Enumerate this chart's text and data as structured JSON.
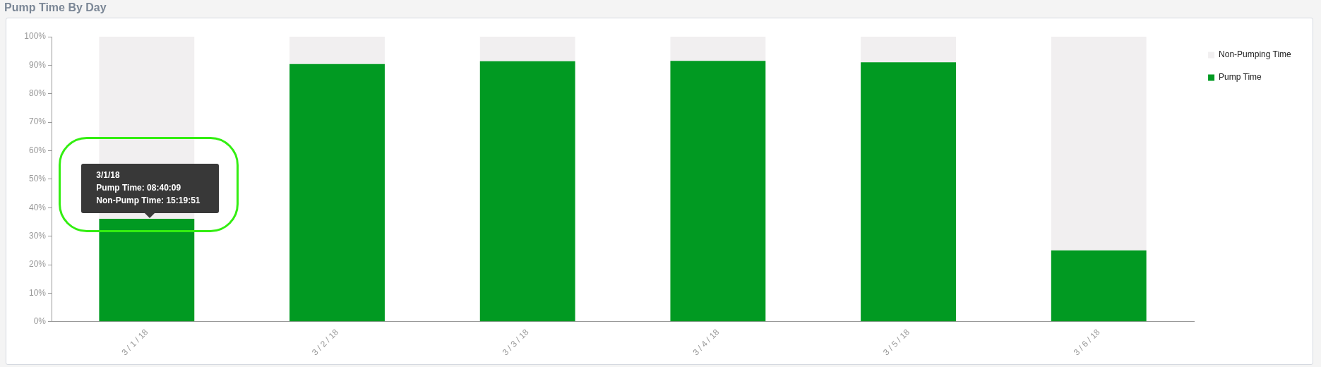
{
  "chart_data": {
    "type": "bar",
    "title": "Pump Time By Day",
    "stacked": true,
    "categories": [
      "3 / 1 / 18",
      "3 / 2 / 18",
      "3 / 3 / 18",
      "3 / 4 / 18",
      "3 / 5 / 18",
      "3 / 6 / 18"
    ],
    "series": [
      {
        "name": "Pump Time",
        "color": "#019a22",
        "values": [
          36.1,
          90.4,
          91.4,
          91.5,
          91.0,
          25.0
        ]
      },
      {
        "name": "Non-Pumping Time",
        "color": "#f1eff0",
        "values": [
          63.9,
          9.6,
          8.6,
          8.5,
          9.0,
          75.0
        ]
      }
    ],
    "ylim": [
      0,
      100
    ],
    "yticks": [
      {
        "value": 0,
        "label": "0%"
      },
      {
        "value": 10,
        "label": "10%"
      },
      {
        "value": 20,
        "label": "20%"
      },
      {
        "value": 30,
        "label": "30%"
      },
      {
        "value": 40,
        "label": "40%"
      },
      {
        "value": 50,
        "label": "50%"
      },
      {
        "value": 60,
        "label": "60%"
      },
      {
        "value": 70,
        "label": "70%"
      },
      {
        "value": 80,
        "label": "80%"
      },
      {
        "value": 90,
        "label": "90%"
      },
      {
        "value": 100,
        "label": "100%"
      }
    ],
    "legend": "top right",
    "annotations": [
      "3/1/18",
      "Pump Time: 08:40:09",
      "Non-Pump Time: 15:19:51"
    ]
  }
}
